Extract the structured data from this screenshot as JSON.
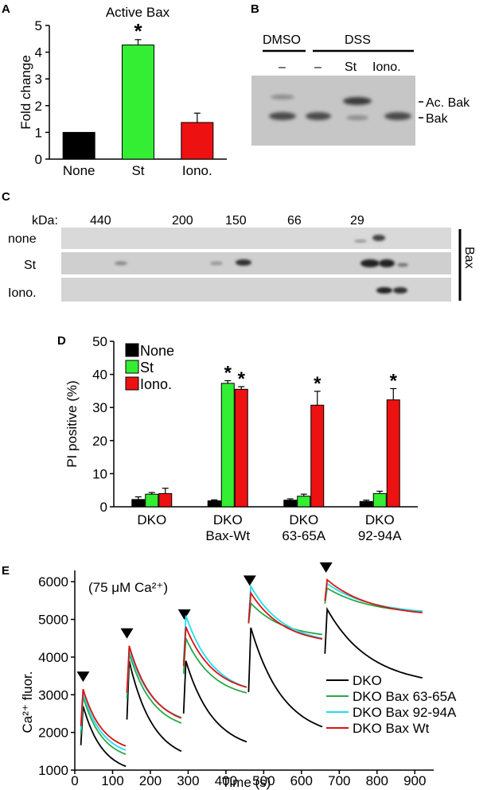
{
  "panels": {
    "A": "A",
    "B": "B",
    "C": "C",
    "D": "D",
    "E": "E"
  },
  "chart_data": [
    {
      "panel": "A",
      "type": "bar",
      "title": "Active Bax",
      "xlabel": "",
      "ylabel": "Fold change",
      "ylim": [
        0,
        5
      ],
      "yticks": [
        0,
        1,
        2,
        3,
        4,
        5
      ],
      "categories": [
        "None",
        "St",
        "Iono."
      ],
      "values": [
        1.0,
        4.27,
        1.37
      ],
      "errors": [
        0,
        0.2,
        0.35
      ],
      "colors": [
        "#000000",
        "#33ee33",
        "#ee1111"
      ],
      "annotations": [
        "",
        "*",
        ""
      ]
    },
    {
      "panel": "B",
      "type": "blot",
      "group_labels": [
        "DMSO",
        "DSS"
      ],
      "lane_labels": [
        "–",
        "–",
        "St",
        "Iono."
      ],
      "band_labels": [
        "Ac. Bak",
        "Bak"
      ]
    },
    {
      "panel": "C",
      "type": "blot",
      "kda_label": "kDa:",
      "markers": [
        "440",
        "200",
        "150",
        "66",
        "29"
      ],
      "rows": [
        "none",
        "St",
        "Iono."
      ],
      "side_label": "Bax"
    },
    {
      "panel": "D",
      "type": "bar",
      "xlabel": "",
      "ylabel": "PI positive (%)",
      "ylim": [
        0,
        50
      ],
      "yticks": [
        0,
        10,
        20,
        30,
        40,
        50
      ],
      "groups": [
        [
          "DKO"
        ],
        [
          "DKO",
          "Bax-Wt"
        ],
        [
          "DKO",
          "63-65A"
        ],
        [
          "DKO",
          "92-94A"
        ]
      ],
      "series": [
        {
          "name": "None",
          "color": "#000000",
          "values": [
            2.2,
            1.8,
            2.0,
            1.6
          ],
          "errors": [
            0.8,
            0.3,
            0.4,
            0.4
          ]
        },
        {
          "name": "St",
          "color": "#33ee33",
          "values": [
            3.8,
            37.3,
            3.2,
            4.0
          ],
          "errors": [
            0.5,
            0.8,
            0.6,
            0.7
          ]
        },
        {
          "name": "Iono.",
          "color": "#ee1111",
          "values": [
            4.0,
            35.5,
            30.7,
            32.3
          ],
          "errors": [
            1.6,
            0.8,
            4.2,
            3.4
          ]
        }
      ],
      "stars": [
        [],
        [
          1,
          2
        ],
        [
          2
        ],
        [
          2
        ]
      ],
      "star_symbol": "*"
    },
    {
      "panel": "E",
      "type": "line",
      "note": "(75 μM Ca²⁺)",
      "xlabel": "Time (s)",
      "ylabel": "Ca²⁺ fluor.",
      "xlim": [
        0,
        950
      ],
      "ylim": [
        1000,
        6300
      ],
      "xticks": [
        0,
        100,
        200,
        300,
        400,
        500,
        600,
        700,
        800,
        900
      ],
      "yticks": [
        1000,
        2000,
        3000,
        4000,
        5000,
        6000
      ],
      "addition_markers_x": [
        22,
        138,
        290,
        463,
        665
      ],
      "series": [
        {
          "name": "DKO",
          "color": "#000000",
          "segments": [
            {
              "start": 16,
              "end": 135,
              "peak": 2700,
              "endv": 1100
            },
            {
              "start": 138,
              "end": 282,
              "peak": 3900,
              "endv": 1500
            },
            {
              "start": 288,
              "end": 455,
              "peak": 3900,
              "endv": 1750
            },
            {
              "start": 460,
              "end": 655,
              "peak": 4780,
              "endv": 2150
            },
            {
              "start": 662,
              "end": 920,
              "peak": 5270,
              "endv": 3450
            }
          ]
        },
        {
          "name": "DKO Bax 63-65A",
          "color": "#2aa84a",
          "segments": [
            {
              "start": 16,
              "end": 135,
              "peak": 2950,
              "endv": 1420
            },
            {
              "start": 138,
              "end": 282,
              "peak": 4100,
              "endv": 2250
            },
            {
              "start": 288,
              "end": 455,
              "peak": 4500,
              "endv": 3050
            },
            {
              "start": 460,
              "end": 655,
              "peak": 5430,
              "endv": 4600
            },
            {
              "start": 662,
              "end": 920,
              "peak": 5830,
              "endv": 5200
            }
          ]
        },
        {
          "name": "DKO Bax 92-94A",
          "color": "#22ddee",
          "segments": [
            {
              "start": 16,
              "end": 135,
              "peak": 3050,
              "endv": 1530
            },
            {
              "start": 138,
              "end": 282,
              "peak": 4200,
              "endv": 2400
            },
            {
              "start": 288,
              "end": 455,
              "peak": 5100,
              "endv": 3200
            },
            {
              "start": 460,
              "end": 655,
              "peak": 5880,
              "endv": 4500
            },
            {
              "start": 662,
              "end": 920,
              "peak": 5950,
              "endv": 5220
            }
          ]
        },
        {
          "name": "DKO Bax Wt",
          "color": "#dd1111",
          "segments": [
            {
              "start": 16,
              "end": 135,
              "peak": 3150,
              "endv": 1640
            },
            {
              "start": 138,
              "end": 282,
              "peak": 4300,
              "endv": 2380
            },
            {
              "start": 288,
              "end": 455,
              "peak": 4800,
              "endv": 3200
            },
            {
              "start": 460,
              "end": 655,
              "peak": 5700,
              "endv": 4480
            },
            {
              "start": 662,
              "end": 920,
              "peak": 6050,
              "endv": 5180
            }
          ]
        }
      ]
    }
  ]
}
